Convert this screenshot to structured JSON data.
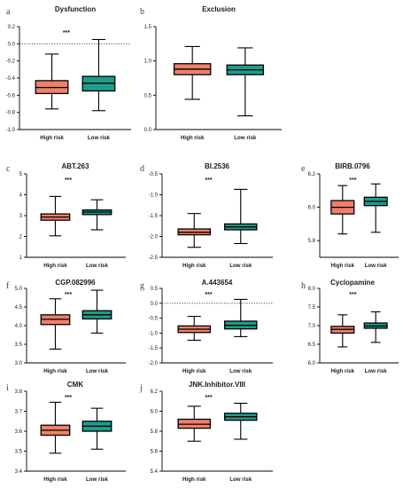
{
  "colors": {
    "high": "#F07F6A",
    "low": "#1E9C88",
    "line": "#000000"
  },
  "chart_data": [
    {
      "letter": "a",
      "title": "Dysfunction",
      "type": "box",
      "ylim": [
        -1.0,
        0.2
      ],
      "yticks": [
        "-1.0",
        "-0.8",
        "-0.6",
        "-0.4",
        "-0.2",
        "0.0",
        "0.2"
      ],
      "dotted_zero": true,
      "significance": "***",
      "categories": [
        "High risk",
        "Low risk"
      ],
      "boxes": [
        {
          "min": -0.76,
          "q1": -0.58,
          "median": -0.51,
          "q3": -0.43,
          "max": -0.12
        },
        {
          "min": -0.78,
          "q1": -0.55,
          "median": -0.46,
          "q3": -0.38,
          "max": 0.05
        }
      ]
    },
    {
      "letter": "b",
      "title": "Exclusion",
      "type": "box",
      "ylim": [
        0.0,
        1.5
      ],
      "yticks": [
        "0.0",
        "0.5",
        "1.0",
        "1.5"
      ],
      "dotted_zero": false,
      "significance": "",
      "categories": [
        "High risk",
        "Low risk"
      ],
      "boxes": [
        {
          "min": 0.44,
          "q1": 0.8,
          "median": 0.88,
          "q3": 0.96,
          "max": 1.21
        },
        {
          "min": 0.2,
          "q1": 0.8,
          "median": 0.87,
          "q3": 0.94,
          "max": 1.19
        }
      ]
    },
    {
      "letter": "c",
      "title": "ABT.263",
      "type": "box",
      "ylim": [
        1,
        5
      ],
      "yticks": [
        "1",
        "2",
        "3",
        "4",
        "5"
      ],
      "dotted_zero": false,
      "significance": "***",
      "categories": [
        "High risk",
        "Low risk"
      ],
      "boxes": [
        {
          "min": 2.03,
          "q1": 2.78,
          "median": 2.93,
          "q3": 3.08,
          "max": 3.92
        },
        {
          "min": 2.32,
          "q1": 3.05,
          "median": 3.17,
          "q3": 3.27,
          "max": 3.76
        }
      ]
    },
    {
      "letter": "d",
      "title": "BI.2536",
      "type": "box",
      "ylim": [
        -2.5,
        -0.5
      ],
      "yticks": [
        "-2.5",
        "-2.0",
        "-1.5",
        "-1.0",
        "-0.5"
      ],
      "dotted_zero": false,
      "significance": "***",
      "categories": [
        "High risk",
        "Low risk"
      ],
      "boxes": [
        {
          "min": -2.26,
          "q1": -1.96,
          "median": -1.9,
          "q3": -1.82,
          "max": -1.45
        },
        {
          "min": -2.17,
          "q1": -1.84,
          "median": -1.77,
          "q3": -1.7,
          "max": -0.87
        }
      ]
    },
    {
      "letter": "e",
      "title": "BIRB.0796",
      "type": "box",
      "ylim": [
        5.7,
        6.2
      ],
      "yticks": [
        "5.8",
        "6.0",
        "6.2"
      ],
      "dotted_zero": false,
      "significance": "***",
      "categories": [
        "High risk",
        "Low risk"
      ],
      "boxes": [
        {
          "min": 5.84,
          "q1": 5.96,
          "median": 6.0,
          "q3": 6.04,
          "max": 6.13
        },
        {
          "min": 5.85,
          "q1": 6.01,
          "median": 6.035,
          "q3": 6.06,
          "max": 6.14
        }
      ]
    },
    {
      "letter": "f",
      "title": "CGP.082996",
      "type": "box",
      "ylim": [
        3.0,
        5.0
      ],
      "yticks": [
        "3.0",
        "3.5",
        "4.0",
        "4.5",
        "5.0"
      ],
      "dotted_zero": false,
      "significance": "***",
      "categories": [
        "High risk",
        "Low risk"
      ],
      "boxes": [
        {
          "min": 3.37,
          "q1": 4.03,
          "median": 4.17,
          "q3": 4.29,
          "max": 4.72
        },
        {
          "min": 3.8,
          "q1": 4.18,
          "median": 4.29,
          "q3": 4.4,
          "max": 4.95
        }
      ]
    },
    {
      "letter": "g",
      "title": "A.443654",
      "type": "box",
      "ylim": [
        -2.0,
        0.5
      ],
      "yticks": [
        "-2.0",
        "-1.5",
        "-1.0",
        "-0.5",
        "0.0",
        "0.5"
      ],
      "dotted_zero": true,
      "significance": "***",
      "categories": [
        "High risk",
        "Low risk"
      ],
      "boxes": [
        {
          "min": -1.24,
          "q1": -0.98,
          "median": -0.87,
          "q3": -0.76,
          "max": -0.44
        },
        {
          "min": -1.12,
          "q1": -0.86,
          "median": -0.74,
          "q3": -0.6,
          "max": 0.13
        }
      ]
    },
    {
      "letter": "h",
      "title": "Cyclopamine",
      "type": "box",
      "ylim": [
        6.0,
        8.0
      ],
      "yticks": [
        "6.0",
        "6.5",
        "7.0",
        "7.5",
        "8.0"
      ],
      "dotted_zero": false,
      "significance": "***",
      "categories": [
        "High risk",
        "Low risk"
      ],
      "boxes": [
        {
          "min": 6.43,
          "q1": 6.8,
          "median": 6.9,
          "q3": 6.98,
          "max": 7.29
        },
        {
          "min": 6.55,
          "q1": 6.93,
          "median": 6.99,
          "q3": 7.07,
          "max": 7.37
        }
      ]
    },
    {
      "letter": "i",
      "title": "CMK",
      "type": "box",
      "ylim": [
        3.4,
        3.8
      ],
      "yticks": [
        "3.4",
        "3.5",
        "3.6",
        "3.7",
        "3.8"
      ],
      "dotted_zero": false,
      "significance": "***",
      "categories": [
        "High risk",
        "Low risk"
      ],
      "boxes": [
        {
          "min": 3.49,
          "q1": 3.58,
          "median": 3.605,
          "q3": 3.63,
          "max": 3.745
        },
        {
          "min": 3.51,
          "q1": 3.6,
          "median": 3.625,
          "q3": 3.65,
          "max": 3.715
        }
      ]
    },
    {
      "letter": "j",
      "title": "JNK.Inhibitor.VIII",
      "type": "box",
      "ylim": [
        5.4,
        6.2
      ],
      "yticks": [
        "5.4",
        "5.6",
        "5.8",
        "6.0",
        "6.2"
      ],
      "dotted_zero": false,
      "significance": "***",
      "categories": [
        "High risk",
        "Low risk"
      ],
      "boxes": [
        {
          "min": 5.7,
          "q1": 5.83,
          "median": 5.87,
          "q3": 5.92,
          "max": 6.05
        },
        {
          "min": 5.72,
          "q1": 5.91,
          "median": 5.945,
          "q3": 5.98,
          "max": 6.08
        }
      ]
    }
  ]
}
